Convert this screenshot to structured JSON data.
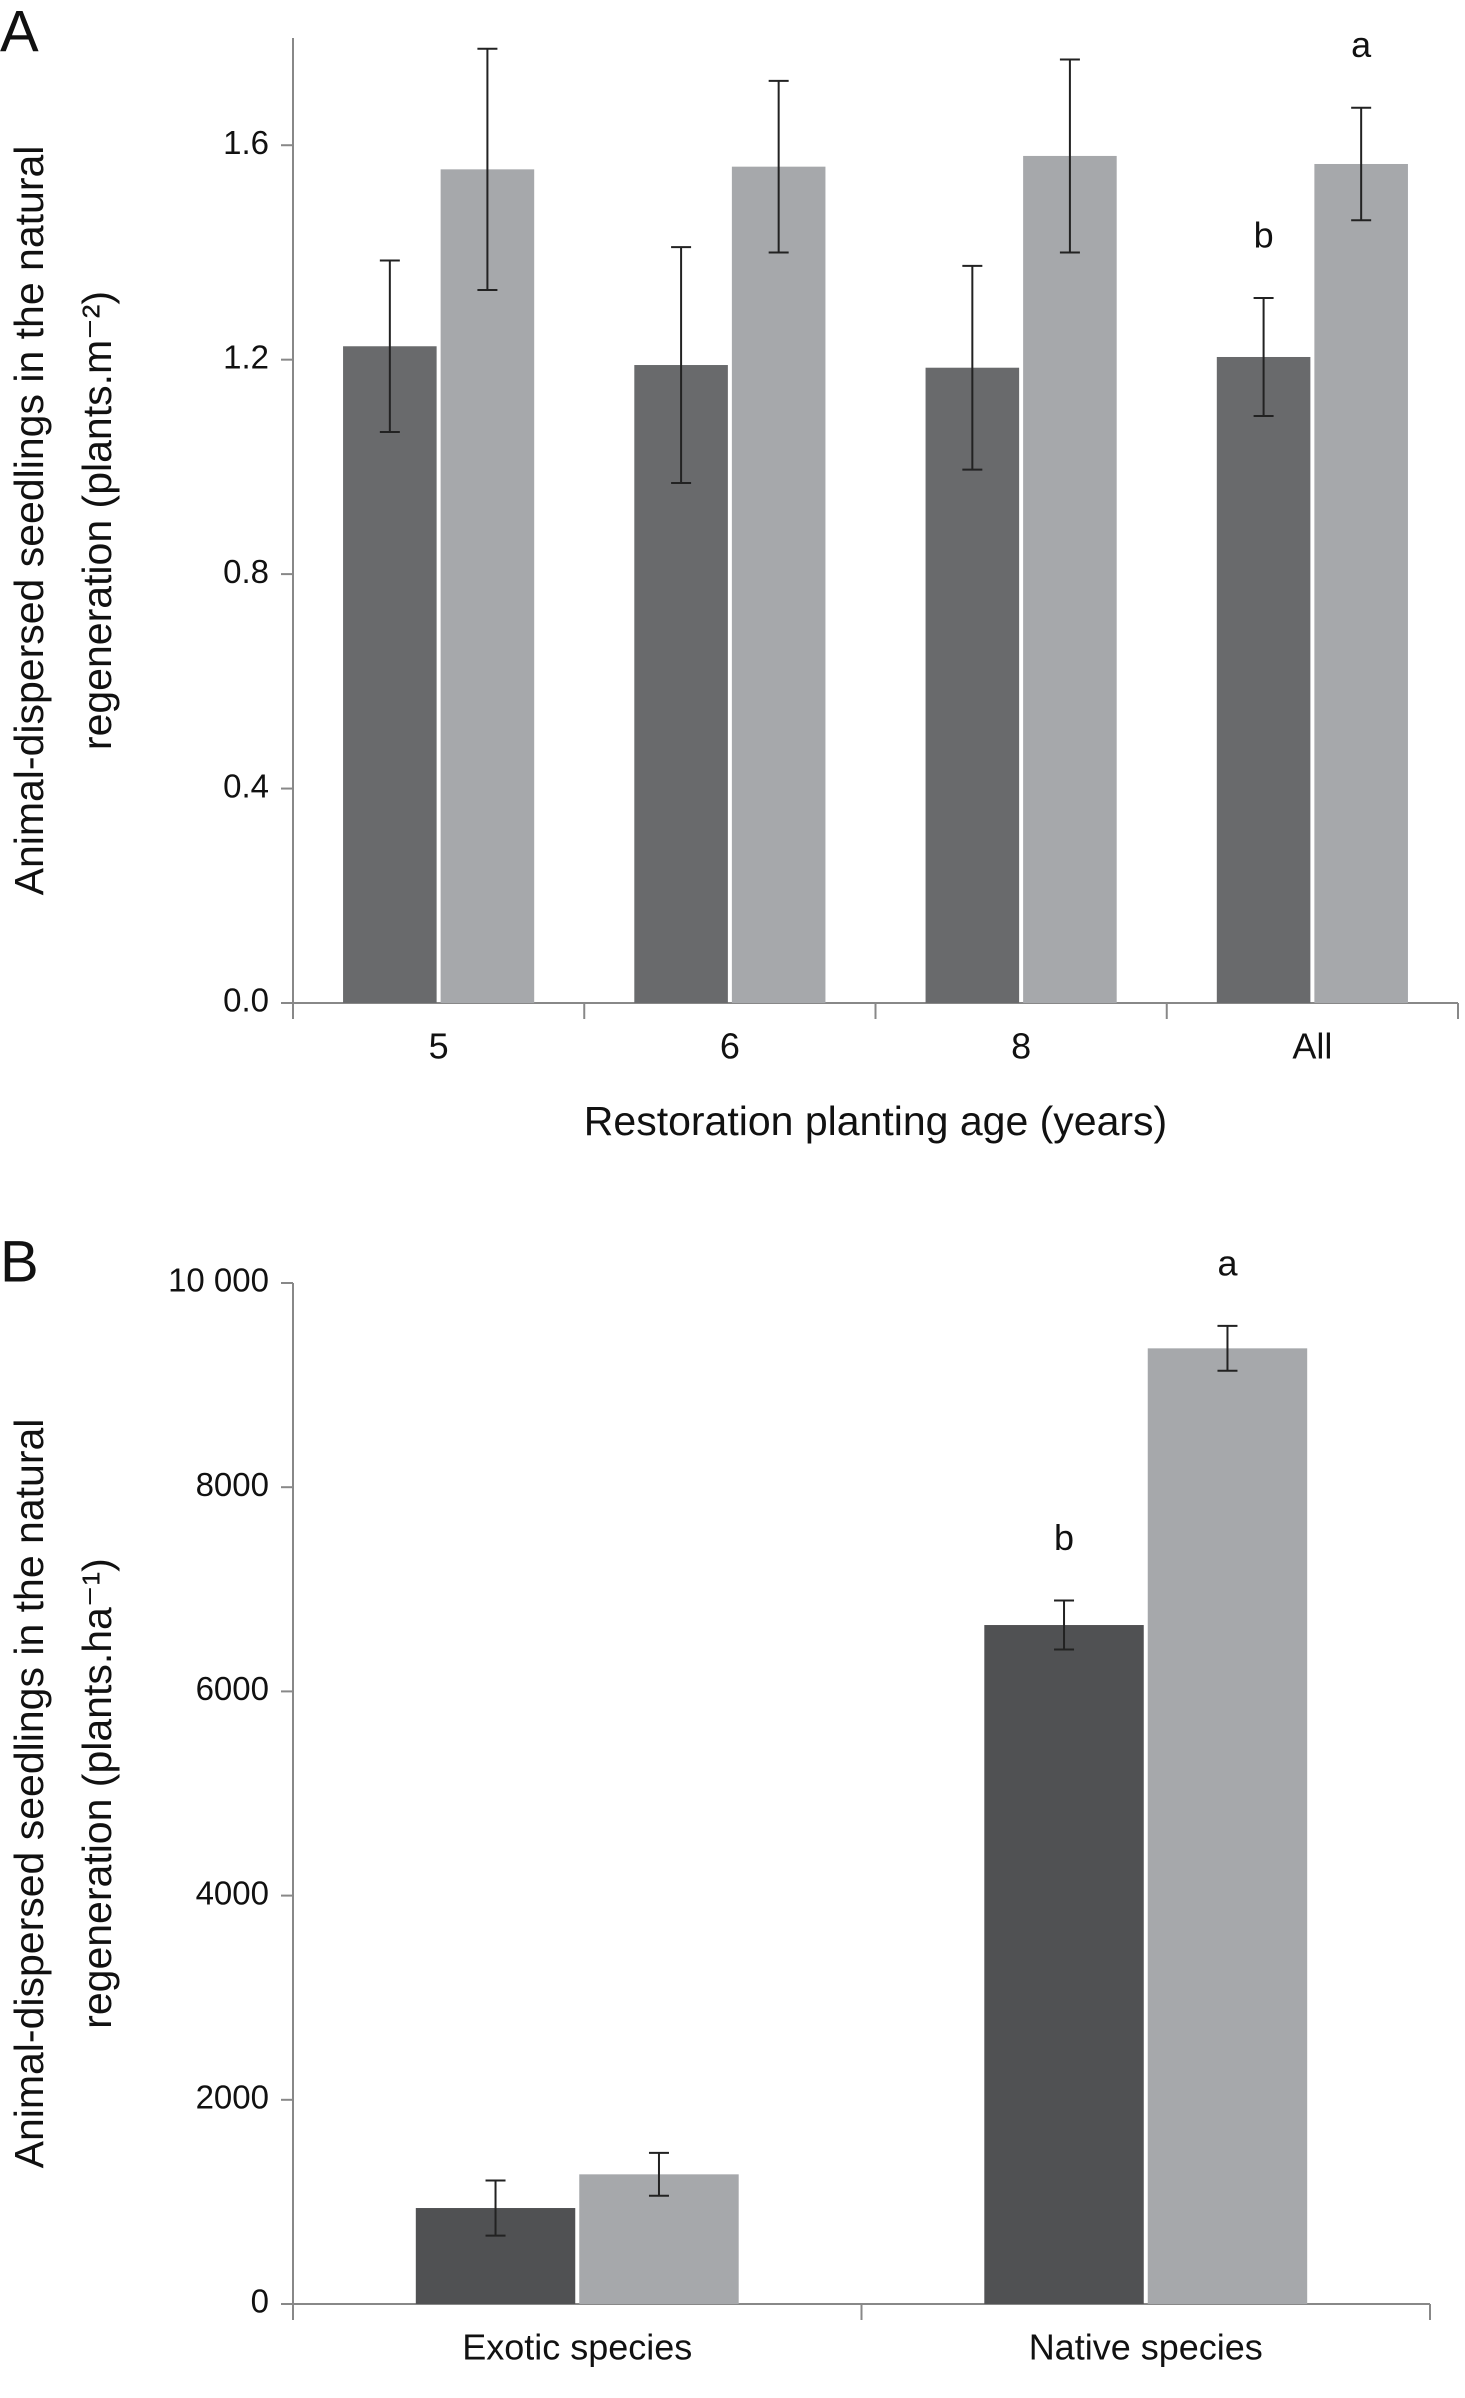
{
  "chart_data": [
    {
      "type": "bar",
      "panel": "A",
      "categories": [
        "5",
        "6",
        "8",
        "All"
      ],
      "series": [
        {
          "color": "#696a6c",
          "values": [
            1.225,
            1.19,
            1.185,
            1.205
          ],
          "errors": [
            0.16,
            0.22,
            0.19,
            0.11
          ],
          "annotations": [
            null,
            null,
            null,
            "b"
          ]
        },
        {
          "color": "#a6a8ab",
          "values": [
            1.555,
            1.56,
            1.58,
            1.565
          ],
          "errors": [
            0.225,
            0.16,
            0.18,
            0.105
          ],
          "annotations": [
            null,
            null,
            null,
            "a"
          ]
        }
      ],
      "ylim": [
        0,
        1.8
      ],
      "yticks": [
        {
          "value": 0,
          "label": "0.0"
        },
        0.4,
        0.8,
        1.2,
        1.6
      ],
      "ylabel": [
        "Animal-dispersed seedlings in the natural",
        "regeneration (plants.m⁻²)"
      ],
      "xlabel": "Restoration planting age (years)"
    },
    {
      "type": "bar",
      "panel": "B",
      "categories": [
        "Exotic species",
        "Native species"
      ],
      "series": [
        {
          "color": "#505153",
          "values": [
            940,
            6650
          ],
          "errors": [
            270,
            240
          ],
          "annotations": [
            null,
            "b"
          ]
        },
        {
          "color": "#a6a8ab",
          "values": [
            1270,
            9360
          ],
          "errors": [
            210,
            220
          ],
          "annotations": [
            null,
            "a"
          ]
        }
      ],
      "ylim": [
        0,
        10000
      ],
      "yticks": [
        0,
        2000,
        4000,
        6000,
        8000,
        {
          "value": 10000,
          "label": "10 000"
        }
      ],
      "ylabel": [
        "Animal-dispersed seedlings in the natural",
        "regeneration (plants.ha⁻¹)"
      ]
    }
  ]
}
